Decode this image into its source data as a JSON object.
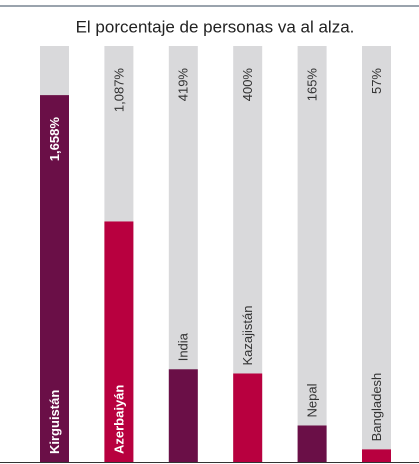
{
  "chart_data": {
    "type": "bar",
    "title": "El porcentaje de personas  va al alza.",
    "categories": [
      "Kirguistán",
      "Azerbaiyán",
      "India",
      "Kazajistán",
      "Nepal",
      "Bangladesh"
    ],
    "values": [
      1658,
      1087,
      419,
      400,
      165,
      57
    ],
    "value_labels": [
      "1,658%",
      "1,087%",
      "419%",
      "400%",
      "165%",
      "57%"
    ],
    "colors": [
      "#6a0f47",
      "#b8003f",
      "#6a0f47",
      "#b8003f",
      "#6a0f47",
      "#b8003f"
    ],
    "ylim": [
      0,
      1880
    ]
  }
}
